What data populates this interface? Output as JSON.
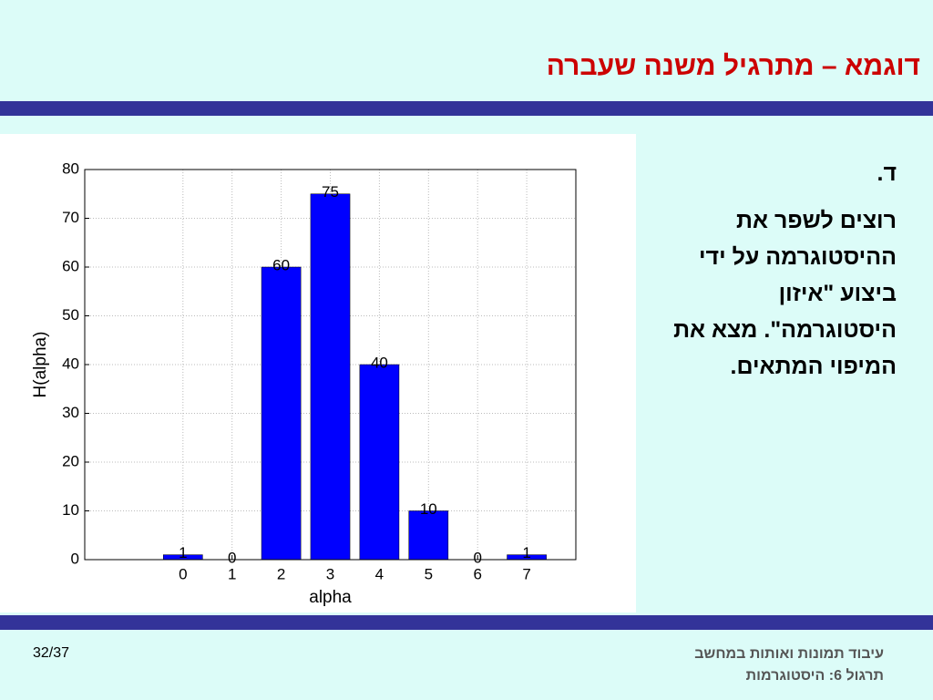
{
  "header": {
    "title": "דוגמא – מתרגיל משנה שעברה"
  },
  "body": {
    "label": "ד.",
    "lines": [
      "רוצים לשפר את",
      "ההיסטוגרמה על ידי",
      "ביצוע \"איזון",
      "היסטוגרמה\". מצא את",
      "המיפוי המתאים."
    ]
  },
  "footer": {
    "page": "32/37",
    "course": "עיבוד תמונות ואותות במחשב",
    "lesson": "תרגול 6: היסטוגרמות"
  },
  "chart_data": {
    "type": "bar",
    "x": [
      0,
      1,
      2,
      3,
      4,
      5,
      6,
      7
    ],
    "values": [
      1,
      0,
      60,
      75,
      40,
      10,
      0,
      1
    ],
    "color": "#0000ff",
    "xlabel": "alpha",
    "ylabel": "H(alpha)",
    "xlim": [
      -2,
      8
    ],
    "xticks": [
      0,
      1,
      2,
      3,
      4,
      5,
      6,
      7
    ],
    "ylim": [
      0,
      80
    ],
    "yticks": [
      0,
      10,
      20,
      30,
      40,
      50,
      60,
      70,
      80
    ],
    "grid": true
  }
}
